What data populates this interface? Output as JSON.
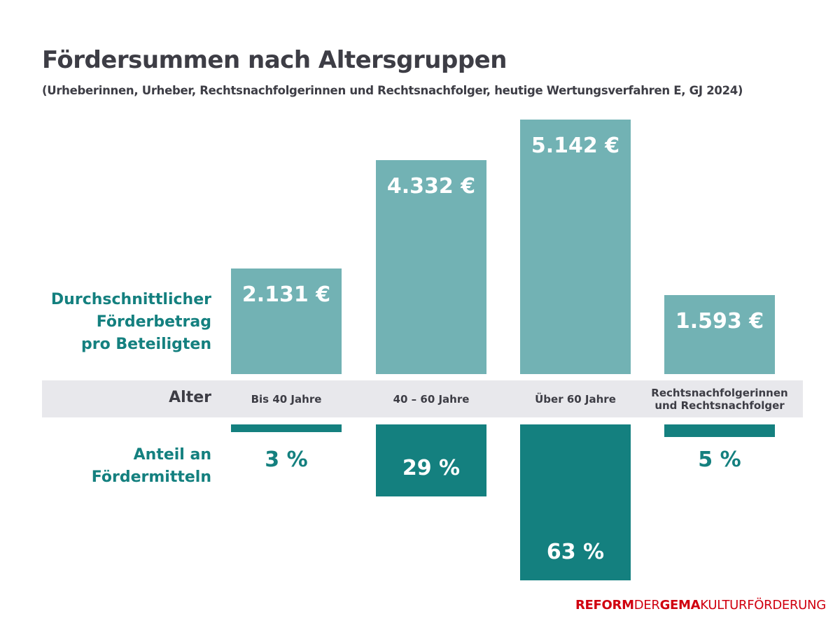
{
  "title": "Fördersummen nach Altersgruppen",
  "subtitle": "(Urheberinnen, Urheber, Rechtsnachfolgerinnen und Rechtsnachfolger, heutige Wertungsverfahren E, GJ 2024)",
  "row_label_top": [
    "Durchschnittlicher",
    "Förderbetrag",
    "pro Beteiligten"
  ],
  "row_label_axis": "Alter",
  "row_label_bottom": [
    "Anteil an",
    "Fördermitteln"
  ],
  "logo": [
    "REFORM",
    "DER",
    "GEMA",
    "KULTURFÖRDERUNG"
  ],
  "colors": {
    "upper": "#72b2b4",
    "lower": "#14807f",
    "band": "#e8e8ec",
    "text": "#3d3d45",
    "logo": "#d0000f"
  },
  "chart_data": {
    "type": "bar",
    "categories": [
      [
        "Bis 40 Jahre"
      ],
      [
        "40 – 60 Jahre"
      ],
      [
        "Über 60 Jahre"
      ],
      [
        "Rechtsnachfolgerinnen",
        "und Rechtsnachfolger"
      ]
    ],
    "series": [
      {
        "name": "Durchschnittlicher Förderbetrag pro Beteiligten",
        "values": [
          2131,
          4332,
          5142,
          1593
        ],
        "labels": [
          "2.131 €",
          "4.332 €",
          "5.142 €",
          "1.593 €"
        ]
      },
      {
        "name": "Anteil an Fördermitteln",
        "values": [
          3,
          29,
          63,
          5
        ],
        "labels": [
          "3 %",
          "29 %",
          "63 %",
          "5 %"
        ]
      }
    ]
  }
}
